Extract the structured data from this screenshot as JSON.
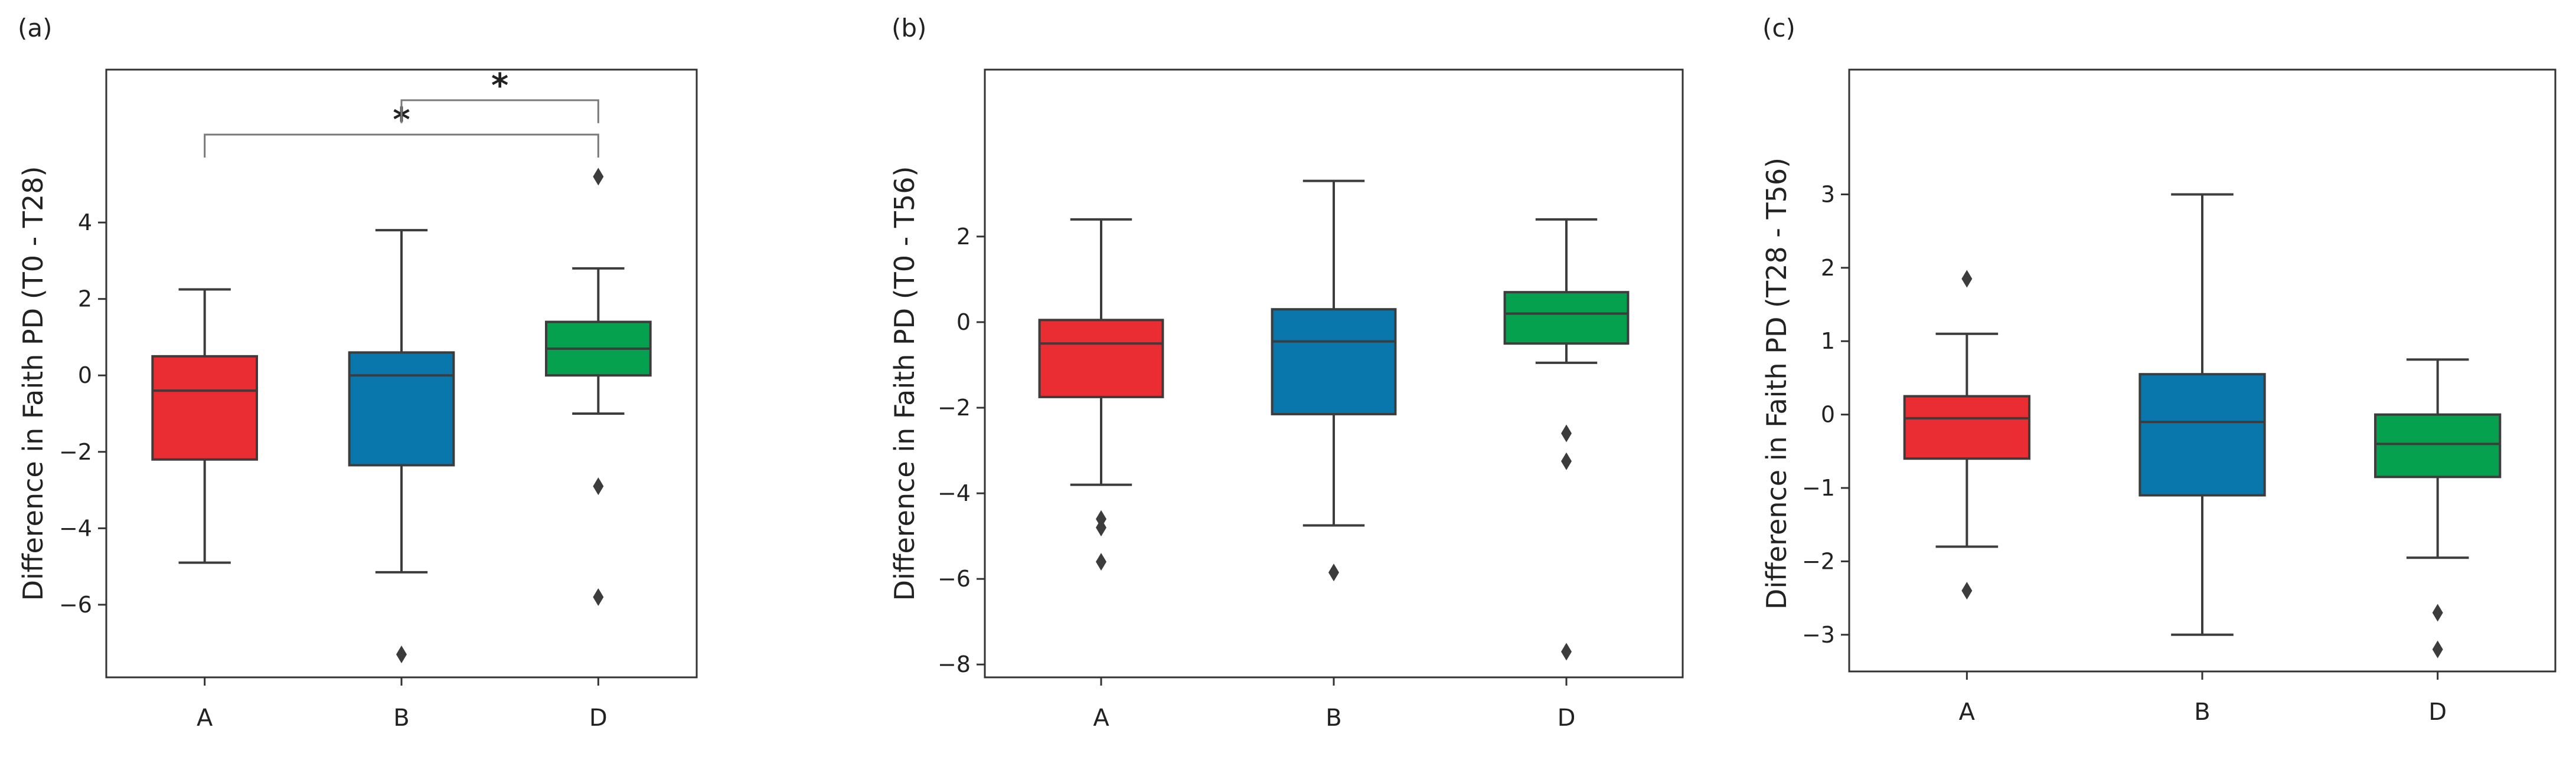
{
  "figure": {
    "panel_count": 3
  },
  "chart_data": [
    {
      "type": "boxplot",
      "panel_label": "(a)",
      "title": "",
      "xlabel": "",
      "ylabel": "Difference in Faith PD (T0 - T28)",
      "categories": [
        "A",
        "B",
        "D"
      ],
      "ylim": [
        -7.9,
        8.0
      ],
      "yticks": [
        -6,
        -4,
        -2,
        0,
        2,
        4
      ],
      "ytick_labels": [
        "−6",
        "−4",
        "−2",
        "0",
        "2",
        "4"
      ],
      "boxes": [
        {
          "category": "A",
          "color": "#e92d32",
          "whisker_low": -4.9,
          "q1": -2.2,
          "median": -0.4,
          "q3": 0.5,
          "whisker_high": 2.25,
          "outliers": []
        },
        {
          "category": "B",
          "color": "#0a77ac",
          "whisker_low": -5.15,
          "q1": -2.35,
          "median": 0.0,
          "q3": 0.6,
          "whisker_high": 3.8,
          "outliers": [
            -7.3
          ]
        },
        {
          "category": "D",
          "color": "#06a14e",
          "whisker_low": -1.0,
          "q1": 0.0,
          "median": 0.7,
          "q3": 1.4,
          "whisker_high": 2.8,
          "outliers": [
            5.2,
            -2.9,
            -5.8
          ]
        }
      ],
      "significance": [
        {
          "from": "A",
          "to": "D",
          "y": 6.3,
          "drop": 0.6,
          "label": "*"
        },
        {
          "from": "B",
          "to": "D",
          "y": 7.2,
          "drop": 0.6,
          "label": "*"
        }
      ]
    },
    {
      "type": "boxplot",
      "panel_label": "(b)",
      "title": "",
      "xlabel": "",
      "ylabel": "Difference in Faith PD (T0 - T56)",
      "categories": [
        "A",
        "B",
        "D"
      ],
      "ylim": [
        -8.3,
        5.9
      ],
      "yticks": [
        -8,
        -6,
        -4,
        -2,
        0,
        2
      ],
      "ytick_labels": [
        "−8",
        "−6",
        "−4",
        "−2",
        "0",
        "2"
      ],
      "boxes": [
        {
          "category": "A",
          "color": "#e92d32",
          "whisker_low": -3.8,
          "q1": -1.75,
          "median": -0.5,
          "q3": 0.05,
          "whisker_high": 2.4,
          "outliers": [
            -4.6,
            -4.8,
            -5.6
          ]
        },
        {
          "category": "B",
          "color": "#0a77ac",
          "whisker_low": -4.75,
          "q1": -2.15,
          "median": -0.45,
          "q3": 0.3,
          "whisker_high": 3.3,
          "outliers": [
            -5.85
          ]
        },
        {
          "category": "D",
          "color": "#06a14e",
          "whisker_low": -0.95,
          "q1": -0.5,
          "median": 0.2,
          "q3": 0.7,
          "whisker_high": 2.4,
          "outliers": [
            -2.6,
            -3.25,
            -7.7
          ]
        }
      ],
      "significance": []
    },
    {
      "type": "boxplot",
      "panel_label": "(c)",
      "title": "",
      "xlabel": "",
      "ylabel": "Difference in Faith PD (T28 - T56)",
      "categories": [
        "A",
        "B",
        "D"
      ],
      "ylim": [
        -3.5,
        4.7
      ],
      "yticks": [
        -3,
        -2,
        -1,
        0,
        1,
        2,
        3
      ],
      "ytick_labels": [
        "−3",
        "−2",
        "−1",
        "0",
        "1",
        "2",
        "3"
      ],
      "boxes": [
        {
          "category": "A",
          "color": "#e92d32",
          "whisker_low": -1.8,
          "q1": -0.6,
          "median": -0.05,
          "q3": 0.25,
          "whisker_high": 1.1,
          "outliers": [
            1.85,
            -2.4
          ]
        },
        {
          "category": "B",
          "color": "#0a77ac",
          "whisker_low": -3.0,
          "q1": -1.1,
          "median": -0.1,
          "q3": 0.55,
          "whisker_high": 3.0,
          "outliers": []
        },
        {
          "category": "D",
          "color": "#06a14e",
          "whisker_low": -1.95,
          "q1": -0.85,
          "median": -0.4,
          "q3": 0.0,
          "whisker_high": 0.75,
          "outliers": [
            -2.7,
            -3.2
          ]
        }
      ],
      "significance": []
    }
  ]
}
